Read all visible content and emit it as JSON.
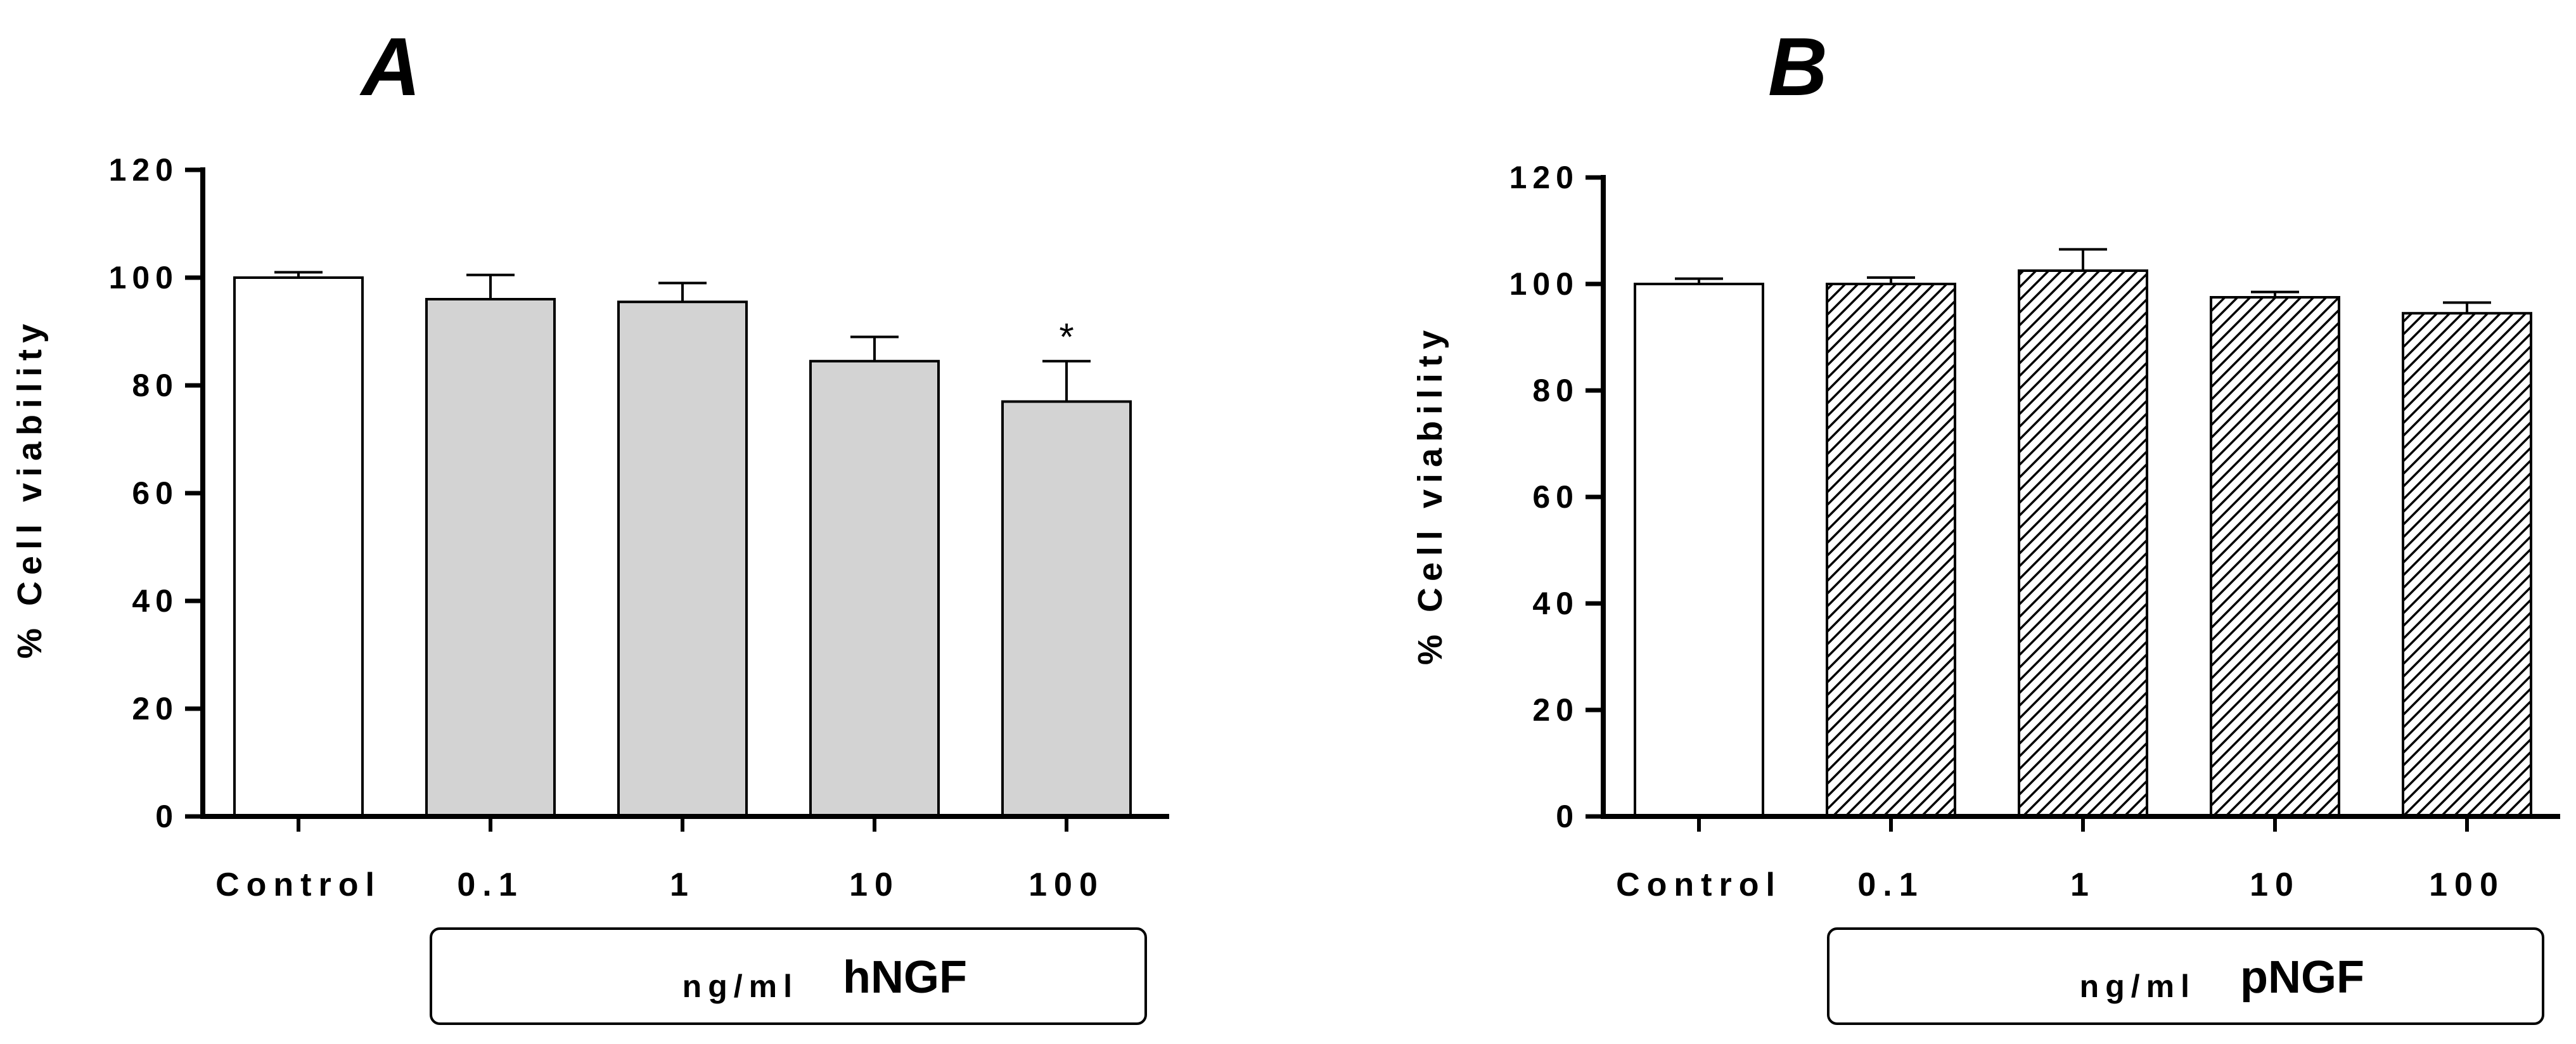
{
  "chart_data": [
    {
      "type": "bar",
      "panel": "A",
      "ylabel": "% Cell viability",
      "ylim": [
        0,
        120
      ],
      "yticks": [
        0,
        20,
        40,
        60,
        80,
        100,
        120
      ],
      "categories": [
        "Control",
        "0.1",
        "1",
        "10",
        "100"
      ],
      "values": [
        100,
        96,
        95.5,
        84.5,
        77
      ],
      "errors": [
        1,
        4.5,
        3.5,
        4.5,
        7.5
      ],
      "annotations": [
        "",
        "",
        "",
        "",
        "*"
      ],
      "bar_fill": [
        "white",
        "gray",
        "gray",
        "gray",
        "gray"
      ],
      "group_box": {
        "unit": "ng/ml",
        "agent": "hNGF"
      }
    },
    {
      "type": "bar",
      "panel": "B",
      "ylabel": "% Cell viability",
      "ylim": [
        0,
        120
      ],
      "yticks": [
        0,
        20,
        40,
        60,
        80,
        100,
        120
      ],
      "categories": [
        "Control",
        "0.1",
        "1",
        "10",
        "100"
      ],
      "values": [
        100,
        100,
        102.5,
        97.5,
        94.5
      ],
      "errors": [
        1,
        1.2,
        4,
        1,
        2
      ],
      "annotations": [
        "",
        "",
        "",
        "",
        ""
      ],
      "bar_fill": [
        "white",
        "hatched",
        "hatched",
        "hatched",
        "hatched"
      ],
      "group_box": {
        "unit": "ng/ml",
        "agent": "pNGF"
      }
    }
  ],
  "colors": {
    "axis": "#000000",
    "gray_bar": "#d3d3d3",
    "white_bar": "#ffffff",
    "hatch": "#000000"
  }
}
